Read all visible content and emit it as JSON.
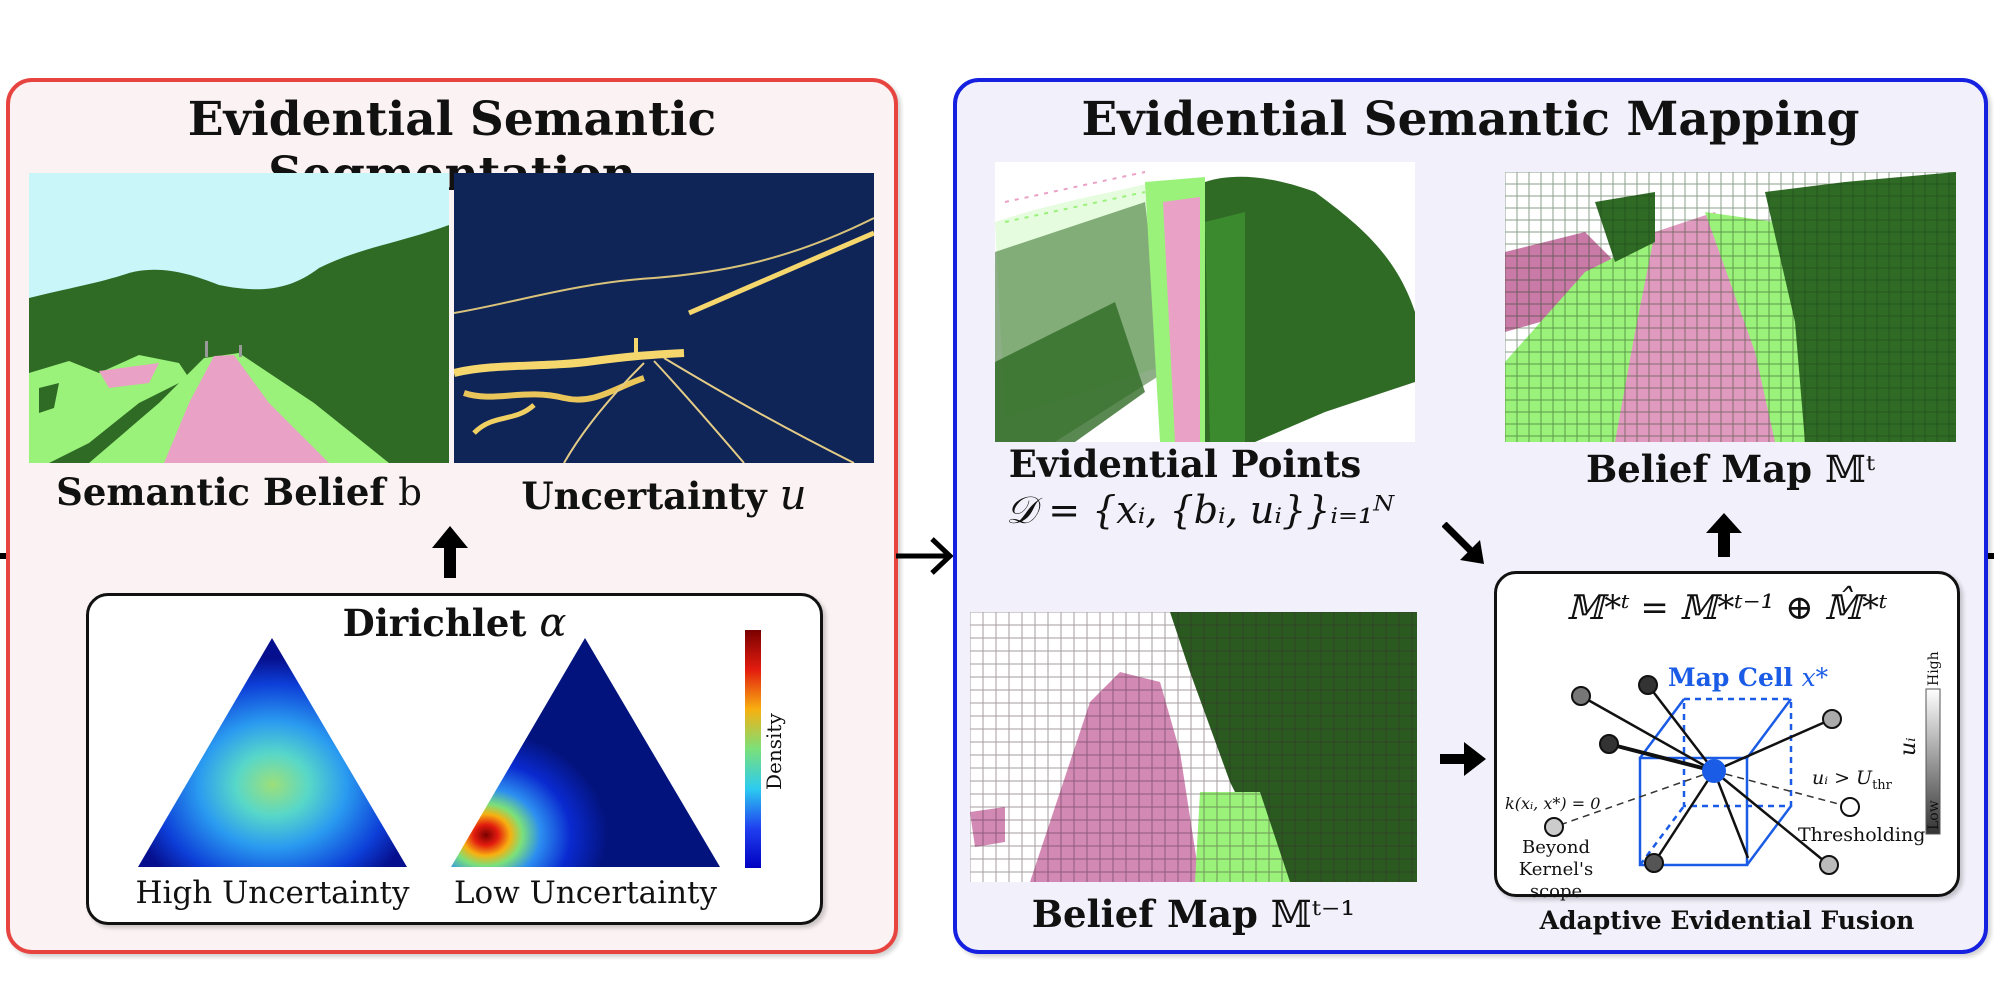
{
  "left_panel": {
    "title": "Evidential Semantic Segmentation",
    "semantic_caption": "Semantic Belief",
    "semantic_symbol": "b",
    "uncertainty_caption": "Uncertainty",
    "uncertainty_symbol": "u",
    "dirichlet": {
      "title": "Dirichlet",
      "symbol": "α",
      "colorbar_label": "Density",
      "high_label": "High Uncertainty",
      "low_label": "Low Uncertainty"
    }
  },
  "right_panel": {
    "title": "Evidential Semantic Mapping",
    "points_caption": "Evidential Points",
    "points_formula": "𝒟 = {xᵢ, {bᵢ, uᵢ}}ᵢ₌₁ᴺ",
    "belief_map_t_caption": "Belief Map",
    "belief_map_t_symbol": "𝕄ᵗ",
    "belief_map_t1_caption": "Belief Map",
    "belief_map_t1_symbol": "𝕄ᵗ⁻¹",
    "fusion": {
      "formula": "𝕄*ᵗ = 𝕄*ᵗ⁻¹ ⊕ 𝕄̂*ᵗ",
      "map_cell_label": "Map Cell",
      "map_cell_symbol": "x*",
      "kernel_label": "k(xᵢ, x*) = 0",
      "beyond_label_1": "Beyond",
      "beyond_label_2": "Kernel's scope",
      "threshold_formula": "uᵢ > U",
      "threshold_sub": "thr",
      "thresholding_label": "Thresholding",
      "scale_high": "High",
      "scale_low": "Low",
      "scale_symbol": "uᵢ",
      "caption": "Adaptive Evidential Fusion"
    }
  },
  "colors": {
    "left_border": "#e8443f",
    "right_border": "#1520e0",
    "road_pink": "#eaa1c6",
    "grass_light": "#9af27a",
    "vegetation_dark": "#2f6b25",
    "sky": "#c8f6f9",
    "uncertainty_bg": "#0f2558",
    "cell_blue": "#1a5ce6"
  }
}
